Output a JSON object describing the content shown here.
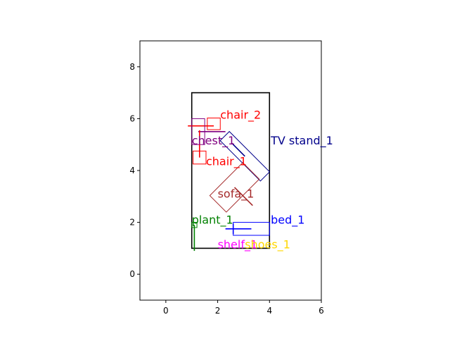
{
  "chart_data": {
    "type": "scatter",
    "title": "",
    "xlabel": "",
    "ylabel": "",
    "xlim": [
      -1,
      6
    ],
    "ylim": [
      -1,
      9
    ],
    "equal_aspect": true,
    "grid": false,
    "xticks": [
      0,
      2,
      4,
      6
    ],
    "yticks": [
      0,
      2,
      4,
      6,
      8
    ],
    "xtick_labels": [
      "0",
      "2",
      "4",
      "6"
    ],
    "ytick_labels": [
      "0",
      "2",
      "4",
      "6",
      "8"
    ],
    "room": {
      "x": 1.0,
      "y": 1.0,
      "width": 3.0,
      "height": 6.0,
      "color": "#000000"
    },
    "objects": [
      {
        "label": "chair_2",
        "color": "#ff0000",
        "label_xy": [
          2.1,
          6.0
        ],
        "rects": [
          {
            "cx": 1.85,
            "cy": 5.8,
            "w": 0.5,
            "h": 0.45,
            "angle": 0
          }
        ],
        "segments": [
          [
            0.85,
            5.72,
            1.85,
            5.72
          ]
        ]
      },
      {
        "label": "chest_1",
        "color": "#800080",
        "label_xy": [
          1.0,
          5.0
        ],
        "rects": [
          {
            "cx": 1.25,
            "cy": 5.5,
            "w": 0.5,
            "h": 1.0,
            "angle": 0
          }
        ],
        "segments": [
          [
            1.25,
            5.5,
            2.3,
            5.5
          ]
        ]
      },
      {
        "label": "chair_1",
        "color": "#ff0000",
        "label_xy": [
          1.55,
          4.2
        ],
        "rects": [
          {
            "cx": 1.3,
            "cy": 4.5,
            "w": 0.5,
            "h": 0.5,
            "angle": 0
          }
        ],
        "segments": [
          [
            1.3,
            4.5,
            1.3,
            5.55
          ]
        ]
      },
      {
        "label": "TV stand_1",
        "color": "#00008b",
        "label_xy": [
          4.05,
          5.0
        ],
        "rects": [
          {
            "cx": 3.05,
            "cy": 4.55,
            "w": 0.5,
            "h": 2.2,
            "angle": -45
          }
        ],
        "segments": [
          [
            3.05,
            4.55,
            2.55,
            5.05
          ]
        ]
      },
      {
        "label": "sofa_1",
        "color": "#a52a2a",
        "label_xy": [
          2.0,
          2.95
        ],
        "rects": [
          {
            "cx": 2.65,
            "cy": 3.35,
            "w": 0.9,
            "h": 1.8,
            "angle": 45
          }
        ],
        "segments": [
          [
            2.65,
            3.35,
            3.35,
            2.65
          ]
        ]
      },
      {
        "label": "plant_1",
        "color": "#008000",
        "label_xy": [
          1.0,
          1.95
        ],
        "rects": [
          {
            "cx": 1.1,
            "cy": 1.9,
            "w": 0.2,
            "h": 0.2,
            "angle": 0
          }
        ],
        "segments": [
          [
            1.1,
            1.9,
            1.1,
            0.9
          ]
        ]
      },
      {
        "label": "bed_1",
        "color": "#0000ff",
        "label_xy": [
          4.05,
          1.95
        ],
        "rects": [
          {
            "cx": 3.3,
            "cy": 1.75,
            "w": 1.4,
            "h": 0.5,
            "angle": 0
          }
        ],
        "segments": [
          [
            3.3,
            1.75,
            2.3,
            1.75
          ],
          [
            2.6,
            1.55,
            2.6,
            1.95
          ]
        ]
      },
      {
        "label": "shelf_1",
        "color": "#ff00ff",
        "label_xy": [
          2.0,
          1.0
        ],
        "rects": [],
        "segments": []
      },
      {
        "label": "shoes_1",
        "color": "#ffd700",
        "label_xy": [
          3.05,
          1.0
        ],
        "rects": [],
        "segments": []
      }
    ]
  }
}
